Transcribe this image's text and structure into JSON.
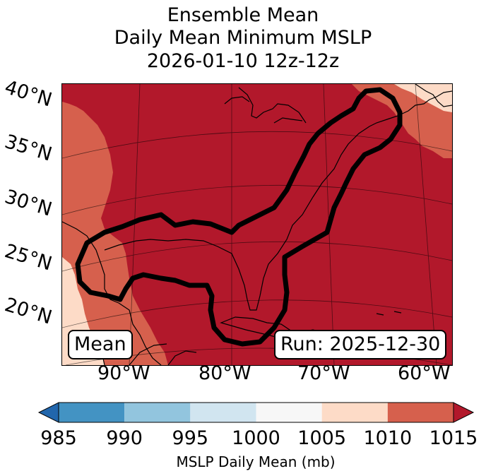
{
  "title": {
    "line1": "Ensemble Mean",
    "line2": "Daily Mean Minimum MSLP",
    "line3": "2026-01-10 12z-12z"
  },
  "map": {
    "lat_labels": [
      "40°N",
      "35°N",
      "30°N",
      "25°N",
      "20°N"
    ],
    "lon_labels": [
      "90°W",
      "80°W",
      "70°W",
      "60°W"
    ],
    "mean_label": "Mean",
    "run_label": "Run: 2025-12-30"
  },
  "chart_data": {
    "type": "heatmap",
    "title": "Ensemble Mean Daily Mean Minimum MSLP 2026-01-10 12z-12z",
    "field": "MSLP Daily Mean (mb)",
    "colorbar": {
      "label": "MSLP Daily Mean (mb)",
      "ticks": [
        985,
        990,
        995,
        1000,
        1005,
        1010,
        1015
      ],
      "bins": [
        {
          "range": [
            985,
            990
          ],
          "color": "#4393c3"
        },
        {
          "range": [
            990,
            995
          ],
          "color": "#92c5de"
        },
        {
          "range": [
            995,
            1000
          ],
          "color": "#d1e5f0"
        },
        {
          "range": [
            1000,
            1005
          ],
          "color": "#f7f7f7"
        },
        {
          "range": [
            1005,
            1010
          ],
          "color": "#fddbc7"
        },
        {
          "range": [
            1010,
            1015
          ],
          "color": "#d6604d"
        }
      ],
      "extend_low_color": "#2166ac",
      "extend_high_color": "#b2182b",
      "extend": "both"
    },
    "domain": {
      "lon_range": [
        -100,
        -58
      ],
      "lat_range": [
        15,
        43
      ]
    },
    "regions": [
      {
        "description": "Most of domain (eastern US, Gulf, Atlantic)",
        "bin": ">1015",
        "color": "#b2182b"
      },
      {
        "description": "Western edge (Texas, Mexico) and far northeast",
        "bin": "1010-1015",
        "color": "#d6604d"
      },
      {
        "description": "Small areas southwest Mexico coast and far NE corner",
        "bin": "1005-1010",
        "color": "#fddbc7"
      }
    ],
    "contour": {
      "description": "Thick black outline enclosing Gulf coast and US East Coast region"
    }
  }
}
